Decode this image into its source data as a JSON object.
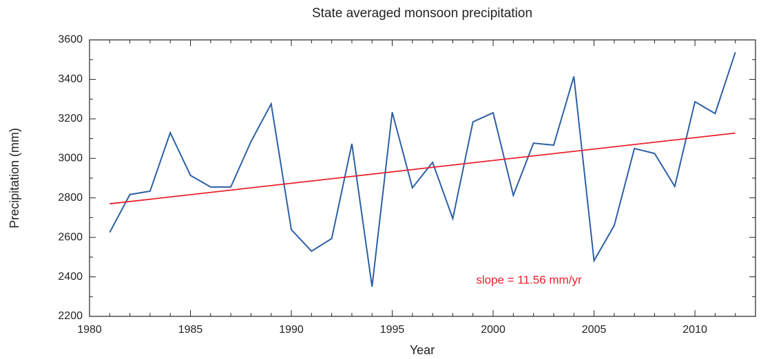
{
  "chart_data": {
    "type": "line",
    "title": "State averaged monsoon precipitation",
    "x_label": "Year",
    "y_label": "Precipitation (mm)",
    "x": [
      1981,
      1982,
      1983,
      1984,
      1985,
      1986,
      1987,
      1988,
      1989,
      1990,
      1991,
      1992,
      1993,
      1994,
      1995,
      1996,
      1997,
      1998,
      1999,
      2000,
      2001,
      2002,
      2003,
      2004,
      2005,
      2006,
      2007,
      2008,
      2009,
      2010,
      2011,
      2012
    ],
    "series": [
      {
        "color": "#2b5fa6",
        "values": [
          2625,
          2817,
          2834,
          3130,
          2914,
          2855,
          2855,
          3085,
          3276,
          2639,
          2530,
          2594,
          3074,
          2350,
          3234,
          2851,
          2980,
          2695,
          3185,
          3231,
          2813,
          3077,
          3067,
          3415,
          2482,
          2660,
          3050,
          3025,
          2858,
          3287,
          3227,
          3537
        ]
      }
    ],
    "trend": {
      "x": [
        1981,
        2012
      ],
      "values": [
        2770,
        3128
      ],
      "color": "#e8202a"
    },
    "annotation": "slope = 11.56 mm/yr",
    "xlim": [
      1980,
      2013
    ],
    "ylim": [
      2200,
      3600
    ],
    "xticks": [
      1980,
      1985,
      1990,
      1995,
      2000,
      2005,
      2010
    ],
    "yticks": [
      2200,
      2400,
      2600,
      2800,
      3000,
      3200,
      3400,
      3600
    ],
    "grid": false
  }
}
